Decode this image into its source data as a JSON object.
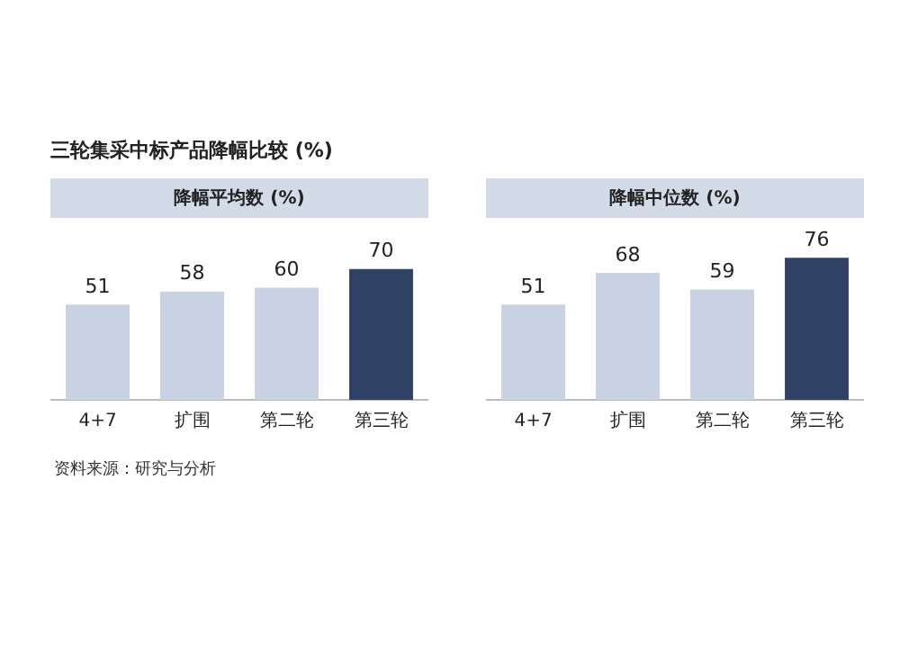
{
  "chart_data": [
    {
      "type": "bar",
      "title": "三轮集采中标产品降幅比较 (%)",
      "subtitle": "降幅平均数 (%)",
      "categories": [
        "4+7",
        "扩围",
        "第二轮",
        "第三轮"
      ],
      "values": [
        51,
        58,
        60,
        70
      ],
      "colors": [
        "#c8d2e2",
        "#c8d2e2",
        "#c8d2e2",
        "#2f4266"
      ],
      "data_labels": true,
      "tick_labels": "x",
      "grid": false,
      "legend": false,
      "annotations": [
        "资料来源：研究与分析"
      ]
    },
    {
      "type": "bar",
      "subtitle": "降幅中位数 (%)",
      "categories": [
        "4+7",
        "扩围",
        "第二轮",
        "第三轮"
      ],
      "values": [
        51,
        68,
        59,
        76
      ],
      "colors": [
        "#c8d2e2",
        "#c8d2e2",
        "#c8d2e2",
        "#2f4266"
      ],
      "data_labels": true,
      "tick_labels": "x",
      "grid": false,
      "legend": false
    }
  ]
}
